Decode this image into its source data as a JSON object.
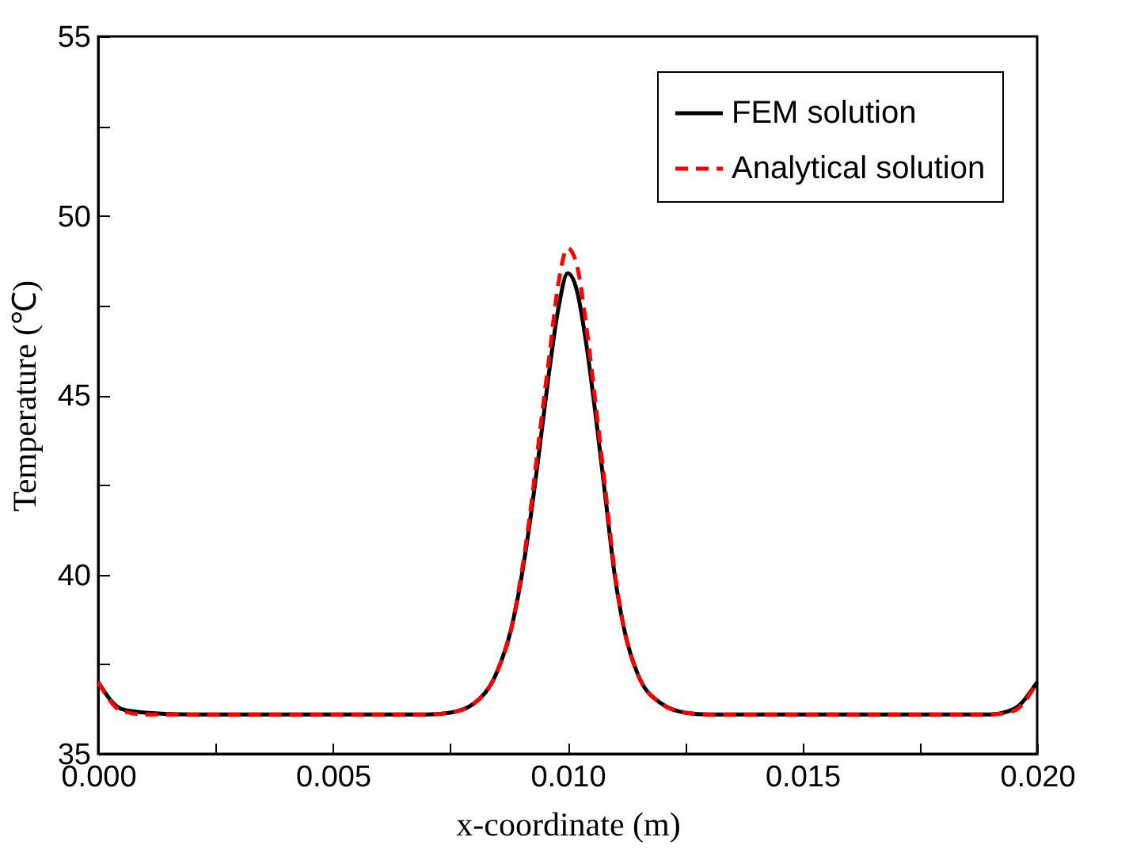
{
  "chart_data": {
    "type": "line",
    "xlabel": "x-coordinate (m)",
    "ylabel": "Temperature (℃)",
    "xlim": [
      0,
      0.02
    ],
    "ylim": [
      35,
      55
    ],
    "xticks": [
      {
        "value": 0,
        "label": "0.000"
      },
      {
        "value": 0.0025,
        "label": null
      },
      {
        "value": 0.005,
        "label": "0.005"
      },
      {
        "value": 0.0075,
        "label": null
      },
      {
        "value": 0.01,
        "label": "0.010"
      },
      {
        "value": 0.0125,
        "label": null
      },
      {
        "value": 0.015,
        "label": "0.015"
      },
      {
        "value": 0.0175,
        "label": null
      },
      {
        "value": 0.02,
        "label": "0.020"
      }
    ],
    "yticks": [
      35,
      {
        "value": 37.5,
        "label": null
      },
      40,
      {
        "value": 42.5,
        "label": null
      },
      45,
      {
        "value": 47.5,
        "label": null
      },
      50,
      {
        "value": 52.5,
        "label": null
      },
      55
    ],
    "legend": "top right",
    "grid": false,
    "marker": "none",
    "series": [
      {
        "name": "FEM solution",
        "color": "#000000",
        "line_style": "solid",
        "x": [
          0,
          0.0005,
          0.001,
          0.002,
          0.004,
          0.006,
          0.007,
          0.0075,
          0.008,
          0.0085,
          0.0088,
          0.009,
          0.0092,
          0.0094,
          0.0096,
          0.0098,
          0.01,
          0.0102,
          0.0104,
          0.0106,
          0.0108,
          0.011,
          0.0112,
          0.0115,
          0.012,
          0.0125,
          0.013,
          0.015,
          0.017,
          0.019,
          0.0195,
          0.02
        ],
        "values": [
          37.0,
          36.25,
          36.15,
          36.1,
          36.1,
          36.1,
          36.1,
          36.15,
          36.4,
          37.3,
          38.5,
          39.8,
          41.5,
          43.5,
          45.6,
          47.4,
          48.4,
          47.9,
          46.4,
          44.4,
          42.2,
          40.0,
          38.5,
          37.2,
          36.4,
          36.15,
          36.1,
          36.1,
          36.1,
          36.1,
          36.25,
          37.0
        ]
      },
      {
        "name": "Analytical solution",
        "color": "#ff0000",
        "line_style": "dashed",
        "x": [
          0,
          0.0005,
          0.001,
          0.002,
          0.004,
          0.006,
          0.007,
          0.0075,
          0.008,
          0.0085,
          0.0088,
          0.009,
          0.0092,
          0.0094,
          0.0096,
          0.0098,
          0.01,
          0.0102,
          0.0104,
          0.0106,
          0.0108,
          0.011,
          0.0112,
          0.0115,
          0.012,
          0.0125,
          0.013,
          0.015,
          0.017,
          0.019,
          0.0195,
          0.02
        ],
        "values": [
          37.0,
          36.2,
          36.1,
          36.1,
          36.1,
          36.1,
          36.1,
          36.15,
          36.4,
          37.3,
          38.5,
          39.9,
          41.7,
          43.9,
          46.0,
          48.1,
          49.1,
          48.6,
          46.9,
          44.7,
          42.4,
          40.1,
          38.5,
          37.2,
          36.4,
          36.15,
          36.1,
          36.1,
          36.1,
          36.1,
          36.2,
          37.0
        ]
      }
    ]
  }
}
